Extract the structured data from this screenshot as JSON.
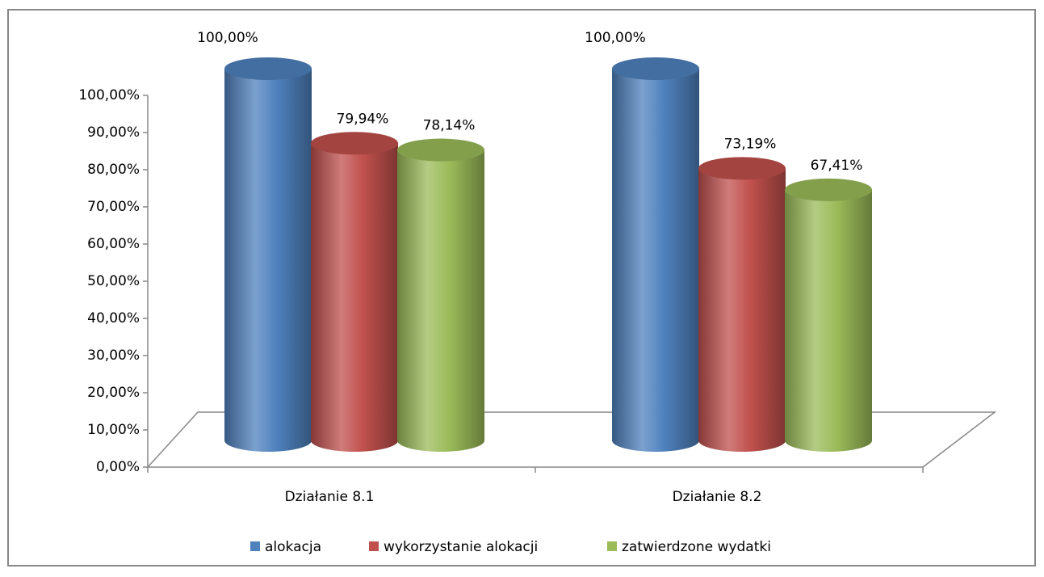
{
  "chart_data": {
    "type": "bar3d-cylinder",
    "categories": [
      "Działanie 8.1",
      "Działanie 8.2"
    ],
    "series": [
      {
        "name": "alokacja",
        "color": "#4f81bd",
        "values": [
          100,
          100
        ],
        "value_labels": [
          "100,00%",
          "100,00%"
        ]
      },
      {
        "name": "wykorzystanie alokacji",
        "color": "#c0504d",
        "values": [
          79.94,
          73.19
        ],
        "value_labels": [
          "79,94%",
          "73,19%"
        ]
      },
      {
        "name": "zatwierdzone wydatki",
        "color": "#9bbb59",
        "values": [
          78.14,
          67.41
        ],
        "value_labels": [
          "78,14%",
          "67,41%"
        ]
      }
    ],
    "ylim": [
      0,
      100
    ],
    "yticks": [
      {
        "value": 0,
        "label": "0,00%"
      },
      {
        "value": 10,
        "label": "10,00%"
      },
      {
        "value": 20,
        "label": "20,00%"
      },
      {
        "value": 30,
        "label": "30,00%"
      },
      {
        "value": 40,
        "label": "40,00%"
      },
      {
        "value": 50,
        "label": "50,00%"
      },
      {
        "value": 60,
        "label": "60,00%"
      },
      {
        "value": 70,
        "label": "70,00%"
      },
      {
        "value": 80,
        "label": "80,00%"
      },
      {
        "value": 90,
        "label": "90,00%"
      },
      {
        "value": 100,
        "label": "100,00%"
      }
    ],
    "legend": "bottom"
  }
}
